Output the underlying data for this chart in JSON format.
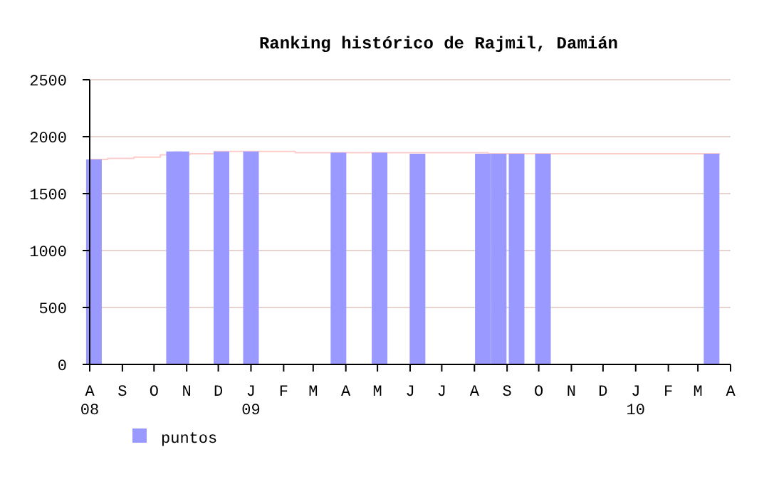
{
  "chart_data": {
    "type": "bar",
    "title": "Ranking histórico de Rajmil, Damián",
    "x": [
      "2008-08-05",
      "2008-10-20",
      "2008-10-27",
      "2008-12-04",
      "2009-01-01",
      "2009-03-25",
      "2009-05-03",
      "2009-06-08",
      "2009-08-09",
      "2009-08-24",
      "2009-09-10",
      "2009-10-05",
      "2010-03-14"
    ],
    "series": [
      {
        "name": "puntos",
        "color": "#9999ff",
        "values": [
          1800,
          1870,
          1870,
          1870,
          1870,
          1860,
          1860,
          1850,
          1850,
          1850,
          1850,
          1850,
          1850
        ]
      },
      {
        "type": "step",
        "color": "#ffcccc",
        "x": [
          "2008-08-01",
          "2008-08-18",
          "2008-09-12",
          "2008-10-07",
          "2008-11-04",
          "2008-11-27",
          "2009-02-12",
          "2009-08-14",
          "2010-03-22"
        ],
        "values": [
          1800,
          1810,
          1820,
          1840,
          1850,
          1870,
          1860,
          1850,
          1850
        ]
      }
    ],
    "xlim": [
      "2008-08-01",
      "2010-04-01"
    ],
    "xticks": [
      {
        "value": "2008-08-01",
        "label": "A\n08"
      },
      {
        "value": "2008-09-01",
        "label": "S"
      },
      {
        "value": "2008-10-01",
        "label": "O"
      },
      {
        "value": "2008-11-01",
        "label": "N"
      },
      {
        "value": "2008-12-01",
        "label": "D"
      },
      {
        "value": "2009-01-01",
        "label": "J\n09"
      },
      {
        "value": "2009-02-01",
        "label": "F"
      },
      {
        "value": "2009-03-01",
        "label": "M"
      },
      {
        "value": "2009-04-01",
        "label": "A"
      },
      {
        "value": "2009-05-01",
        "label": "M"
      },
      {
        "value": "2009-06-01",
        "label": "J"
      },
      {
        "value": "2009-07-01",
        "label": "J"
      },
      {
        "value": "2009-08-01",
        "label": "A"
      },
      {
        "value": "2009-09-01",
        "label": "S"
      },
      {
        "value": "2009-10-01",
        "label": "O"
      },
      {
        "value": "2009-11-01",
        "label": "N"
      },
      {
        "value": "2009-12-01",
        "label": "D"
      },
      {
        "value": "2010-01-01",
        "label": "J\n10"
      },
      {
        "value": "2010-02-01",
        "label": "F"
      },
      {
        "value": "2010-03-01",
        "label": "M"
      },
      {
        "value": "2010-04-01",
        "label": "A"
      }
    ],
    "ylim": [
      0,
      2500
    ],
    "yticks": [
      0,
      500,
      1000,
      1500,
      2000,
      2500
    ],
    "grid": "y",
    "legend": "bottom left"
  }
}
